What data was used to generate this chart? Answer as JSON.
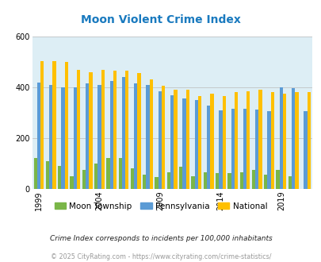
{
  "title": "Moon Violent Crime Index",
  "title_color": "#1a7abf",
  "years": [
    1999,
    2000,
    2001,
    2002,
    2003,
    2004,
    2005,
    2006,
    2007,
    2008,
    2009,
    2010,
    2011,
    2012,
    2013,
    2014,
    2015,
    2016,
    2017,
    2018,
    2019,
    2020,
    2021
  ],
  "moon": [
    120,
    110,
    90,
    50,
    75,
    100,
    120,
    120,
    80,
    55,
    45,
    65,
    85,
    50,
    65,
    60,
    60,
    65,
    75,
    55,
    75,
    50,
    0
  ],
  "pennsylvania": [
    420,
    410,
    400,
    400,
    415,
    410,
    425,
    440,
    415,
    410,
    385,
    370,
    355,
    350,
    328,
    308,
    315,
    315,
    312,
    305,
    400,
    398,
    305
  ],
  "national": [
    505,
    505,
    500,
    470,
    460,
    470,
    465,
    465,
    455,
    430,
    405,
    390,
    390,
    365,
    375,
    365,
    380,
    385,
    390,
    380,
    375,
    380,
    380
  ],
  "moon_color": "#7ab648",
  "penn_color": "#5b9bd5",
  "national_color": "#ffc000",
  "bg_color": "#ddeef5",
  "ylim": [
    0,
    600
  ],
  "yticks": [
    0,
    200,
    400,
    600
  ],
  "xtick_years": [
    1999,
    2004,
    2009,
    2014,
    2019
  ],
  "legend_labels": [
    "Moon Township",
    "Pennsylvania",
    "National"
  ],
  "footnote1": "Crime Index corresponds to incidents per 100,000 inhabitants",
  "footnote2": "© 2025 CityRating.com - https://www.cityrating.com/crime-statistics/",
  "footnote1_color": "#222222",
  "footnote2_color": "#999999",
  "bar_width": 0.28,
  "grid_color": "#bbbbbb"
}
